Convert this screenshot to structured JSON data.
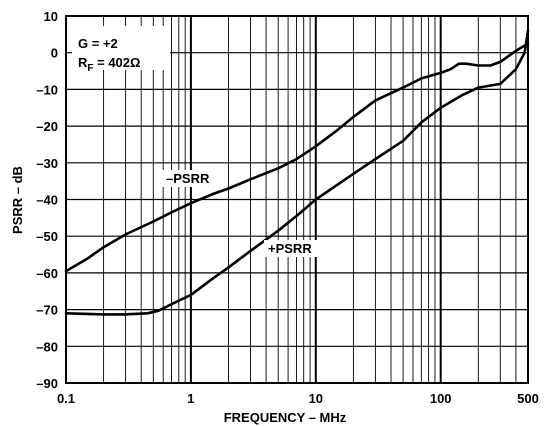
{
  "chart_data": {
    "type": "line",
    "xlabel": "FREQUENCY – MHz",
    "ylabel": "PSRR – dB",
    "xscale": "log",
    "xlim": [
      0.1,
      500
    ],
    "ylim": [
      -90,
      10
    ],
    "grid": true,
    "x_ticks": [
      "0.1",
      "1",
      "10",
      "100",
      "500"
    ],
    "y_ticks": [
      "10",
      "0",
      "–10",
      "–20",
      "–30",
      "–40",
      "–50",
      "–60",
      "–70",
      "–80",
      "–90"
    ],
    "annotations": {
      "gain": "G = +2",
      "rf_main": "R",
      "rf_sub": "F",
      "rf_value": " = 402Ω"
    },
    "series": [
      {
        "name": "–PSRR",
        "points": [
          [
            0.1,
            -59.5
          ],
          [
            0.15,
            -56
          ],
          [
            0.2,
            -53
          ],
          [
            0.3,
            -49.5
          ],
          [
            0.5,
            -46
          ],
          [
            0.7,
            -43.5
          ],
          [
            1,
            -41
          ],
          [
            1.5,
            -38.5
          ],
          [
            2,
            -37
          ],
          [
            3,
            -34.5
          ],
          [
            5,
            -31.5
          ],
          [
            7,
            -29
          ],
          [
            10,
            -25.5
          ],
          [
            15,
            -21
          ],
          [
            20,
            -17.5
          ],
          [
            30,
            -13
          ],
          [
            50,
            -9.5
          ],
          [
            70,
            -7
          ],
          [
            100,
            -5.5
          ],
          [
            120,
            -4.5
          ],
          [
            140,
            -3
          ],
          [
            160,
            -3
          ],
          [
            200,
            -3.5
          ],
          [
            250,
            -3.5
          ],
          [
            300,
            -2.5
          ],
          [
            400,
            0.5
          ],
          [
            500,
            2.5
          ]
        ]
      },
      {
        "name": "+PSRR",
        "points": [
          [
            0.1,
            -71
          ],
          [
            0.2,
            -71.3
          ],
          [
            0.3,
            -71.3
          ],
          [
            0.45,
            -71
          ],
          [
            0.55,
            -70.3
          ],
          [
            0.7,
            -68.5
          ],
          [
            1,
            -66
          ],
          [
            1.5,
            -61.5
          ],
          [
            2,
            -58.5
          ],
          [
            3,
            -54
          ],
          [
            5,
            -48.5
          ],
          [
            7,
            -44.5
          ],
          [
            10,
            -40
          ],
          [
            20,
            -33
          ],
          [
            30,
            -29
          ],
          [
            50,
            -24
          ],
          [
            70,
            -19
          ],
          [
            100,
            -15
          ],
          [
            150,
            -11.5
          ],
          [
            200,
            -9.5
          ],
          [
            300,
            -8.5
          ],
          [
            400,
            -4.5
          ],
          [
            470,
            0
          ],
          [
            500,
            6
          ]
        ]
      }
    ]
  }
}
